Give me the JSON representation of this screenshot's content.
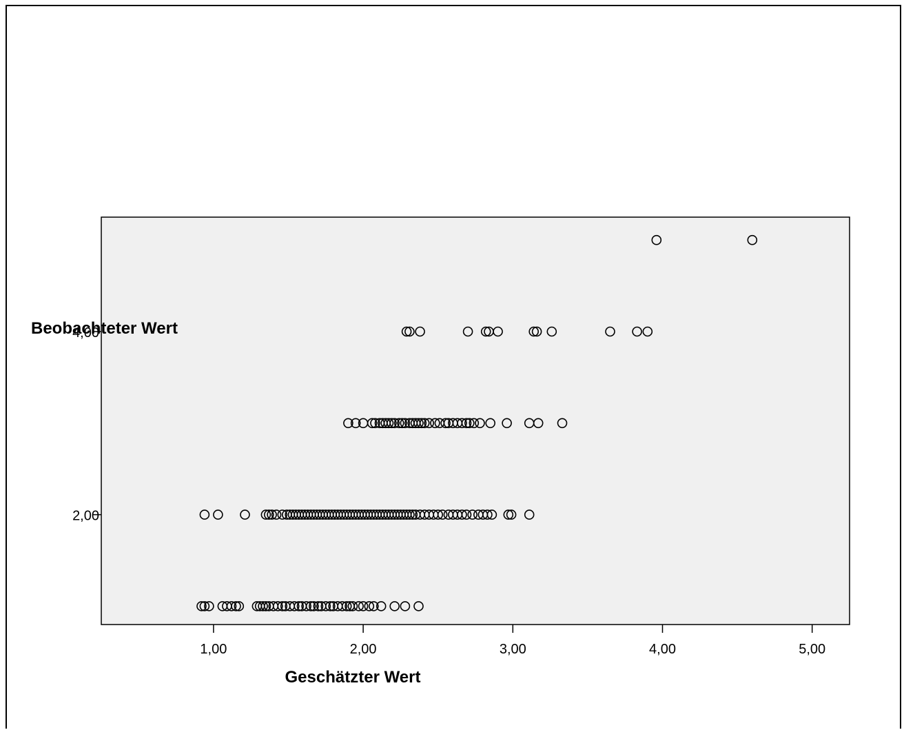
{
  "chart_data": {
    "type": "scatter",
    "title": "",
    "xlabel": "Geschätzter Wert",
    "ylabel": "Beobachteter Wert",
    "xlim": [
      0.25,
      5.25
    ],
    "ylim": [
      0.8,
      5.25
    ],
    "xticks": [
      1,
      2,
      3,
      4,
      5
    ],
    "xtick_labels": [
      "1,00",
      "2,00",
      "3,00",
      "4,00",
      "5,00"
    ],
    "yticks": [
      2,
      4
    ],
    "ytick_labels": [
      "2,00",
      "4,00"
    ],
    "grid": false,
    "background": "#f0f0f0",
    "marker": "open-circle",
    "series": [
      {
        "y": 5,
        "x": [
          3.96,
          4.6
        ]
      },
      {
        "y": 4,
        "x": [
          2.29,
          2.31,
          2.38,
          2.7,
          2.82,
          2.84,
          2.9,
          3.14,
          3.16,
          3.26,
          3.65,
          3.83,
          3.9
        ]
      },
      {
        "y": 3,
        "x": [
          1.9,
          1.95,
          2.0,
          2.06,
          2.08,
          2.11,
          2.13,
          2.15,
          2.17,
          2.19,
          2.21,
          2.24,
          2.26,
          2.28,
          2.31,
          2.33,
          2.35,
          2.37,
          2.39,
          2.41,
          2.44,
          2.48,
          2.51,
          2.55,
          2.57,
          2.6,
          2.63,
          2.66,
          2.69,
          2.71,
          2.74,
          2.78,
          2.85,
          2.96,
          3.11,
          3.17,
          3.33
        ]
      },
      {
        "y": 2,
        "x": [
          0.94,
          1.03,
          1.21,
          1.35,
          1.37,
          1.39,
          1.42,
          1.46,
          1.49,
          1.51,
          1.53,
          1.55,
          1.57,
          1.59,
          1.61,
          1.63,
          1.65,
          1.67,
          1.69,
          1.71,
          1.73,
          1.75,
          1.77,
          1.79,
          1.81,
          1.83,
          1.85,
          1.87,
          1.89,
          1.91,
          1.93,
          1.95,
          1.97,
          1.99,
          2.01,
          2.03,
          2.05,
          2.07,
          2.09,
          2.11,
          2.13,
          2.15,
          2.17,
          2.19,
          2.21,
          2.23,
          2.25,
          2.27,
          2.29,
          2.31,
          2.33,
          2.35,
          2.38,
          2.41,
          2.44,
          2.47,
          2.5,
          2.53,
          2.57,
          2.6,
          2.63,
          2.66,
          2.69,
          2.73,
          2.77,
          2.8,
          2.83,
          2.86,
          2.97,
          2.99,
          3.11
        ]
      },
      {
        "y": 1,
        "x": [
          0.92,
          0.94,
          0.97,
          1.06,
          1.09,
          1.12,
          1.15,
          1.17,
          1.29,
          1.31,
          1.33,
          1.35,
          1.37,
          1.4,
          1.43,
          1.46,
          1.48,
          1.51,
          1.54,
          1.57,
          1.59,
          1.62,
          1.65,
          1.67,
          1.7,
          1.72,
          1.75,
          1.78,
          1.8,
          1.83,
          1.86,
          1.89,
          1.91,
          1.93,
          1.97,
          2.0,
          2.04,
          2.07,
          2.12,
          2.21,
          2.28,
          2.37
        ]
      }
    ]
  }
}
